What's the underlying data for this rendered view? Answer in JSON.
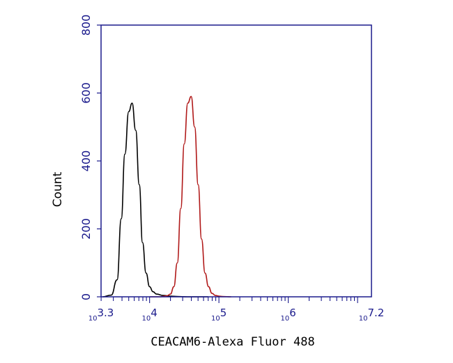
{
  "chart_data": {
    "type": "line",
    "title": "",
    "xlabel": "CEACAM6-Alexa Fluor 488",
    "ylabel": "Count",
    "x_scale": "log10",
    "xlim": [
      1995,
      15850000
    ],
    "ylim": [
      0,
      800
    ],
    "y_ticks": [
      0,
      200,
      400,
      600,
      800
    ],
    "x_tick_labels": [
      {
        "base": "10",
        "exp": "3.3"
      },
      {
        "base": "10",
        "exp": "4"
      },
      {
        "base": "10",
        "exp": "5"
      },
      {
        "base": "10",
        "exp": "6"
      },
      {
        "base": "10",
        "exp": "7.2"
      }
    ],
    "x_tick_values": [
      1995,
      10000,
      100000,
      1000000,
      15850000
    ],
    "grid": false,
    "legend": "none",
    "colors": {
      "axis": "#1a1a8c",
      "series_control": "#000000",
      "series_sample": "#b01818"
    },
    "series": [
      {
        "color": "#000000",
        "x": [
          2100,
          2800,
          3400,
          3900,
          4400,
          5000,
          5600,
          6300,
          7100,
          7900,
          8900,
          10000,
          11200,
          12600,
          15800,
          20000,
          25000,
          35000,
          50000,
          70000
        ],
        "y": [
          0,
          5,
          50,
          230,
          420,
          545,
          570,
          490,
          330,
          160,
          70,
          30,
          15,
          8,
          4,
          2,
          1,
          0,
          0,
          0
        ]
      },
      {
        "color": "#b01818",
        "x": [
          10000,
          14000,
          17800,
          20000,
          22400,
          25100,
          28200,
          31600,
          35500,
          39800,
          44700,
          50100,
          56200,
          63100,
          70800,
          79400,
          89100,
          100000,
          112200,
          150000
        ],
        "y": [
          0,
          0,
          3,
          8,
          30,
          100,
          260,
          450,
          570,
          590,
          500,
          330,
          170,
          70,
          30,
          10,
          4,
          2,
          1,
          0
        ]
      }
    ]
  }
}
